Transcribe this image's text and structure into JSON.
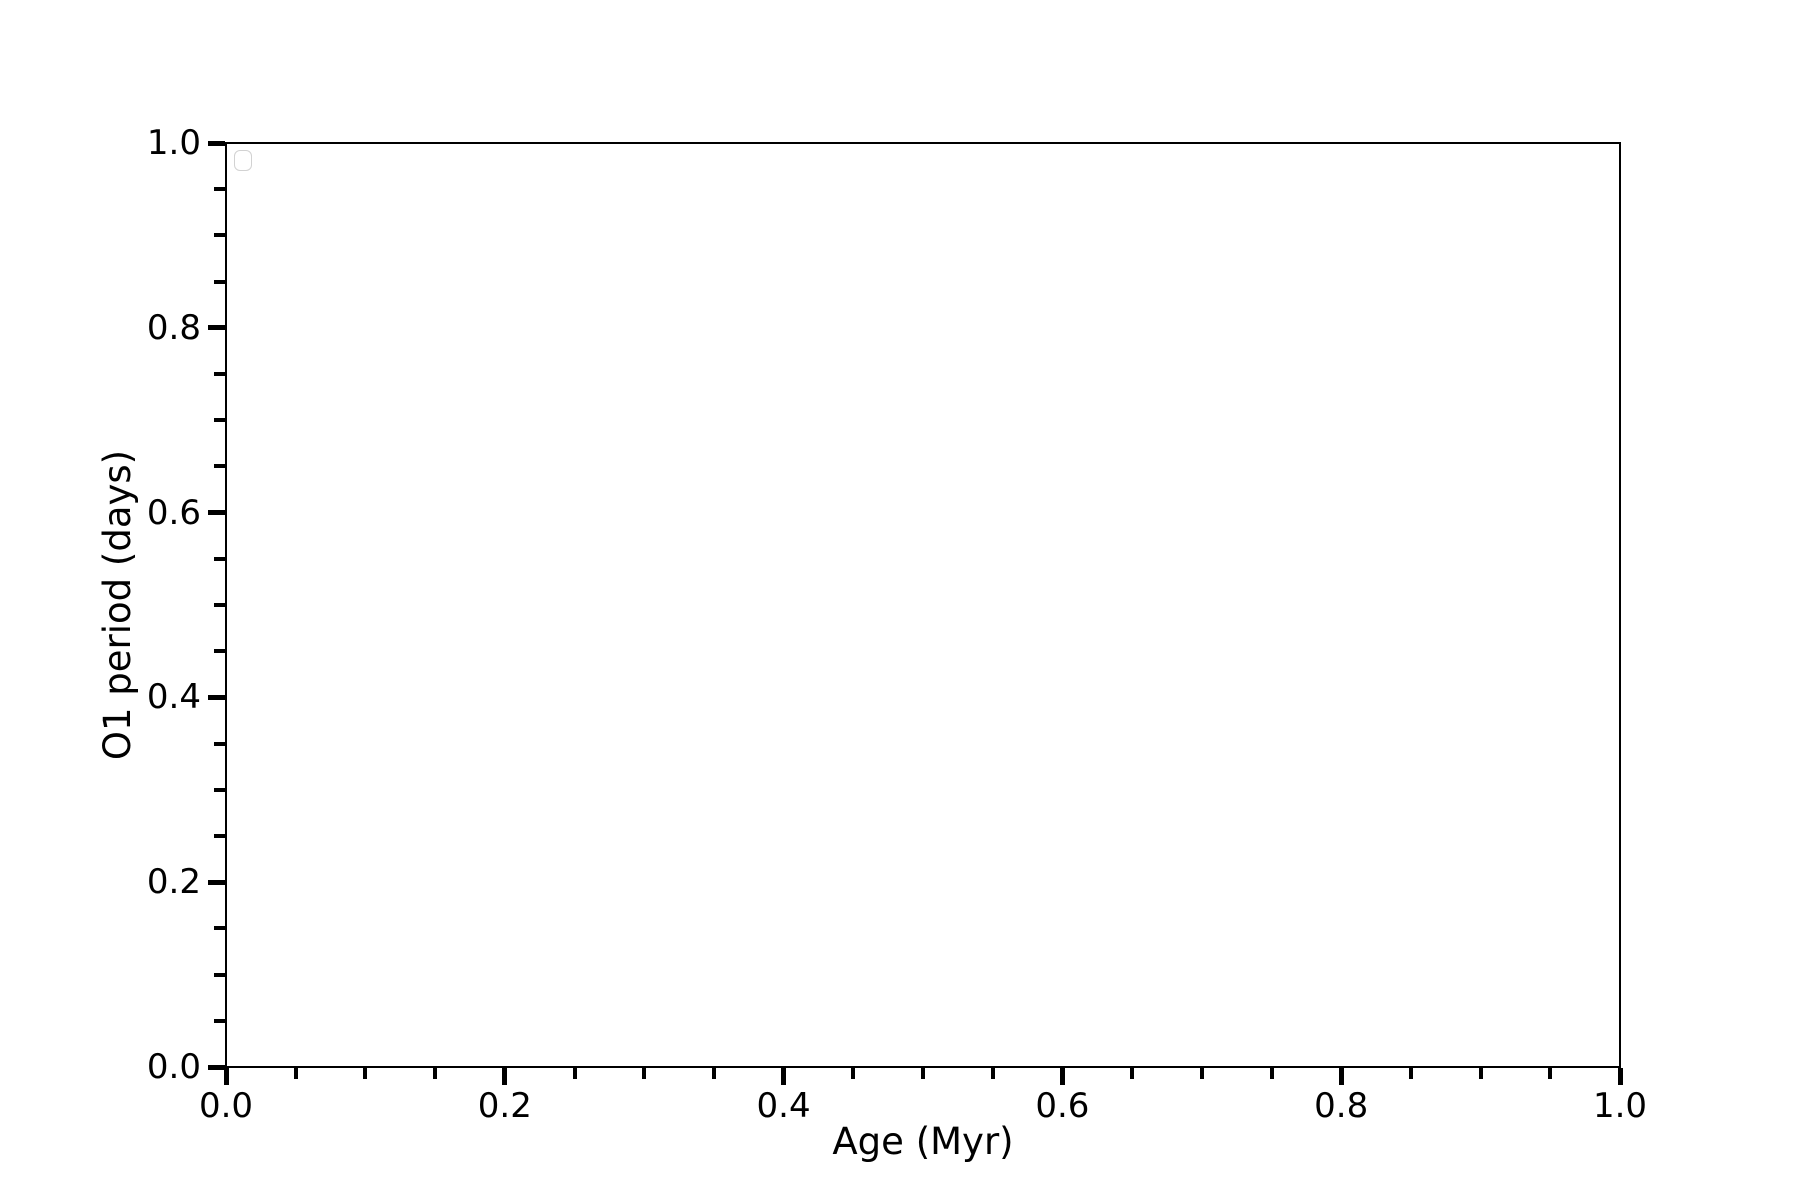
{
  "chart_data": {
    "type": "line",
    "title": "",
    "xlabel": "Age (Myr)",
    "ylabel": "O1 period (days)",
    "xlim": [
      0.0,
      1.0
    ],
    "ylim": [
      0.0,
      1.0
    ],
    "xticks": [
      0.0,
      0.2,
      0.4,
      0.6,
      0.8,
      1.0
    ],
    "yticks": [
      0.0,
      0.2,
      0.4,
      0.6,
      0.8,
      1.0
    ],
    "xtick_labels": [
      "0.0",
      "0.2",
      "0.4",
      "0.6",
      "0.8",
      "1.0"
    ],
    "ytick_labels": [
      "0.0",
      "0.2",
      "0.4",
      "0.6",
      "0.8",
      "1.0"
    ],
    "minor_tick_step": 0.05,
    "grid": false,
    "legend": {
      "visible": true,
      "position": "upper left",
      "entries": []
    },
    "series": [],
    "colors": {
      "spine": "#000000",
      "tick": "#000000",
      "text": "#000000",
      "legend_border": "#d2d2d2",
      "background": "#ffffff"
    }
  }
}
